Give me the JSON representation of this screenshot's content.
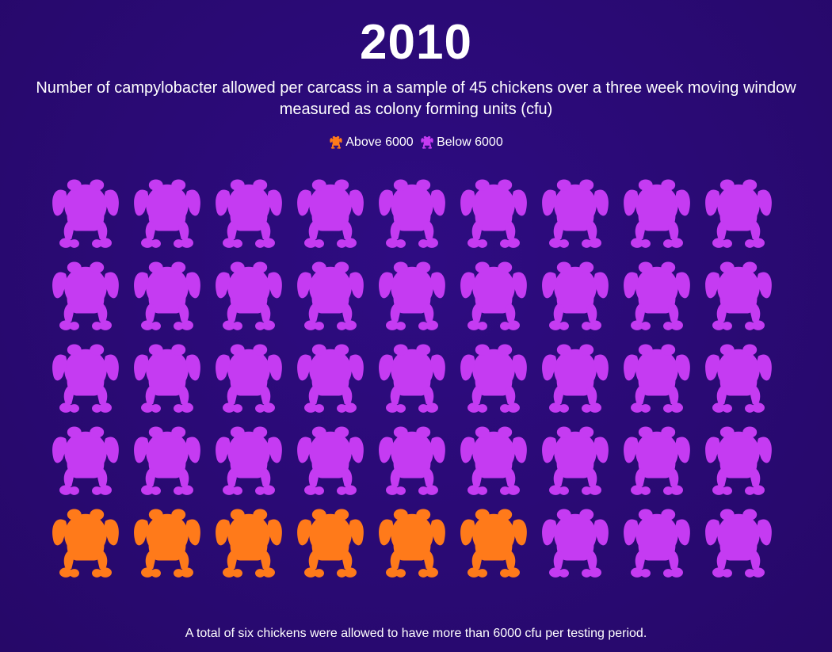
{
  "title": "2010",
  "subtitle": "Number of campylobacter allowed per carcass in a sample of 45 chickens over a three week moving window measured as colony forming units (cfu)",
  "legend": [
    {
      "label": "Above 6000",
      "color": "#ff7a1a",
      "icon": "chicken-icon"
    },
    {
      "label": "Below 6000",
      "color": "#c53bf2",
      "icon": "chicken-icon"
    }
  ],
  "footnote": "A total of six chickens were allowed to have more than 6000 cfu per testing period.",
  "chart_data": {
    "type": "pictogram",
    "title": "2010",
    "total": 45,
    "columns": 9,
    "rows": 5,
    "series": [
      {
        "name": "Above 6000",
        "count": 6,
        "color": "#ff7a1a"
      },
      {
        "name": "Below 6000",
        "count": 39,
        "color": "#c53bf2"
      }
    ],
    "cells": [
      "Below 6000",
      "Below 6000",
      "Below 6000",
      "Below 6000",
      "Below 6000",
      "Below 6000",
      "Below 6000",
      "Below 6000",
      "Below 6000",
      "Below 6000",
      "Below 6000",
      "Below 6000",
      "Below 6000",
      "Below 6000",
      "Below 6000",
      "Below 6000",
      "Below 6000",
      "Below 6000",
      "Below 6000",
      "Below 6000",
      "Below 6000",
      "Below 6000",
      "Below 6000",
      "Below 6000",
      "Below 6000",
      "Below 6000",
      "Below 6000",
      "Below 6000",
      "Below 6000",
      "Below 6000",
      "Below 6000",
      "Below 6000",
      "Below 6000",
      "Below 6000",
      "Below 6000",
      "Below 6000",
      "Above 6000",
      "Above 6000",
      "Above 6000",
      "Above 6000",
      "Above 6000",
      "Above 6000",
      "Below 6000",
      "Below 6000",
      "Below 6000"
    ]
  }
}
